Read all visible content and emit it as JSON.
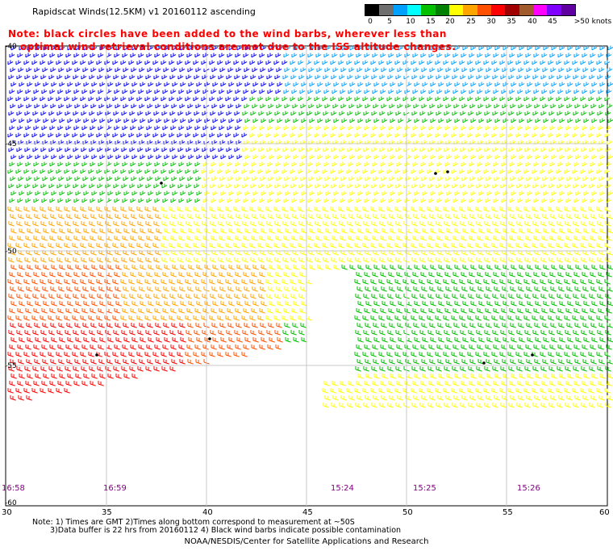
{
  "header": {
    "title": "Rapidscat Winds(12.5KM) v1 20160112 ascending"
  },
  "notes": {
    "line1": "Note: black circles have been added to the wind barbs, wherever less than",
    "line2": "optimal wind retrieval conditions are met due to the ISS altitude changes."
  },
  "legend": {
    "unit": "knots",
    "labels": [
      "0",
      "5",
      "10",
      "15",
      "20",
      "25",
      "30",
      "35",
      "40",
      "45",
      ">50 knots"
    ],
    "colors": [
      "#000000",
      "#6e6e6e",
      "#00a0ff",
      "#00ffff",
      "#00c000",
      "#008000",
      "#ffff00",
      "#ffa500",
      "#ff5000",
      "#ff0000",
      "#a00000",
      "#a05a2c",
      "#ff00ff",
      "#8000ff",
      "#6000a0"
    ]
  },
  "axes": {
    "lon_ticks": [
      "30",
      "35",
      "40",
      "45",
      "50",
      "55",
      "60"
    ],
    "lat_ticks": [
      "-40",
      "-45",
      "-50",
      "-55",
      "-60"
    ]
  },
  "pass_times": [
    "16:58",
    "16:59",
    "15:24",
    "15:25",
    "15:26"
  ],
  "footer": {
    "line1": "Note: 1) Times are GMT 2)Times along bottom correspond to measurement at ~50S",
    "line2": "3)Data buffer is 22 hrs from 20160112 4) Black wind barbs indicate possible contamination",
    "credit": "NOAA/NESDIS/Center for Satellite Applications and Research"
  },
  "map_colors": {
    "gridline": "#c8c8c8",
    "frame": "#000000",
    "speed_5_10": "#00a0ff",
    "speed_10_15": "#0000ff",
    "speed_15_20": "#00c000",
    "speed_20_25": "#ffff00",
    "speed_25_30": "#ffa500",
    "speed_30_35": "#ff5000",
    "speed_35_40": "#ff0000",
    "contamination": "#000000"
  }
}
